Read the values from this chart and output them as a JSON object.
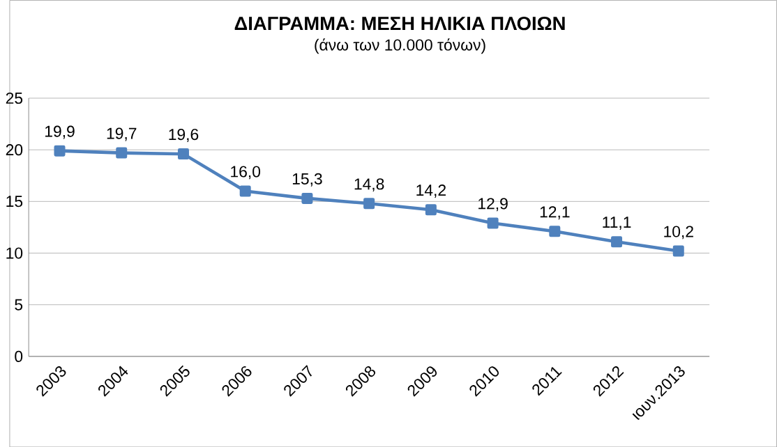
{
  "chart_data": {
    "type": "line",
    "title": "ΔΙΑΓΡΑΜΜΑ: ΜΕΣΗ ΗΛΙΚΙΑ ΠΛΟΙΩΝ",
    "subtitle": "(άνω των 10.000 τόνων)",
    "categories": [
      "2003",
      "2004",
      "2005",
      "2006",
      "2007",
      "2008",
      "2009",
      "2010",
      "2011",
      "2012",
      "ιουν.2013"
    ],
    "series": [
      {
        "color": "#4f81bd",
        "values": [
          19.9,
          19.7,
          19.6,
          16.0,
          15.3,
          14.8,
          14.2,
          12.9,
          12.1,
          11.1,
          10.2
        ],
        "value_labels": [
          "19,9",
          "19,7",
          "19,6",
          "16,0",
          "15,3",
          "14,8",
          "14,2",
          "12,9",
          "12,1",
          "11,1",
          "10,2"
        ]
      }
    ],
    "ylim": [
      0,
      25
    ],
    "yticks": [
      0,
      5,
      10,
      15,
      20,
      25
    ],
    "grid": "y",
    "marker": "square",
    "line_style": "solid"
  }
}
